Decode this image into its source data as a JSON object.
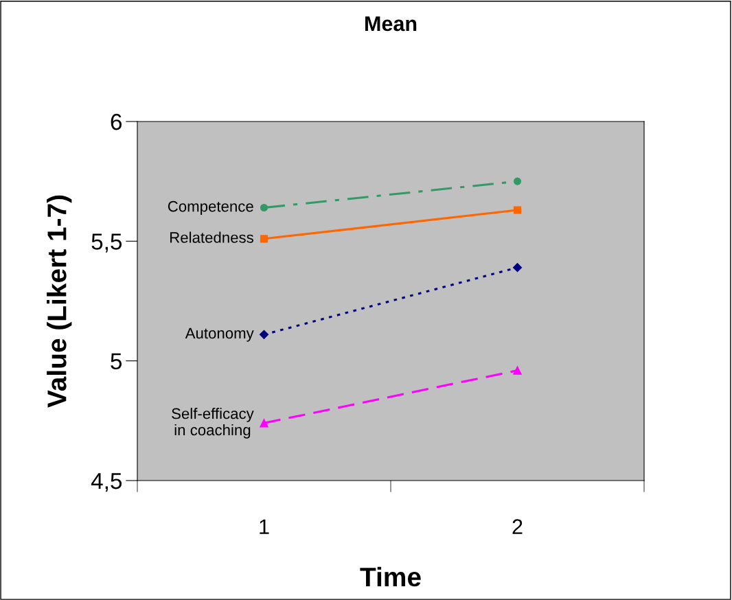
{
  "chart_data": {
    "type": "line",
    "title": "Mean",
    "xlabel": "Time",
    "ylabel": "Value (Likert 1-7)",
    "categories": [
      "1",
      "2"
    ],
    "series": [
      {
        "name": "Competence",
        "color": "#339966",
        "values": [
          5.64,
          5.75
        ],
        "marker": "circle",
        "line_style": "dashdot"
      },
      {
        "name": "Relatedness",
        "color": "#ff6600",
        "values": [
          5.51,
          5.63
        ],
        "marker": "square",
        "line_style": "solid"
      },
      {
        "name": "Autonomy",
        "color": "#000080",
        "values": [
          5.11,
          5.39
        ],
        "marker": "diamond",
        "line_style": "dotted"
      },
      {
        "name": "Self-efficacy\nin coaching",
        "color": "#ff00ff",
        "values": [
          4.74,
          4.96
        ],
        "marker": "triangle",
        "line_style": "dashed"
      }
    ],
    "ylim": [
      4.5,
      6
    ],
    "yticks": [
      {
        "value": 4.5,
        "label": "4,5"
      },
      5,
      {
        "value": 5.5,
        "label": "5,5"
      },
      6
    ],
    "grid": false,
    "legend": false
  }
}
